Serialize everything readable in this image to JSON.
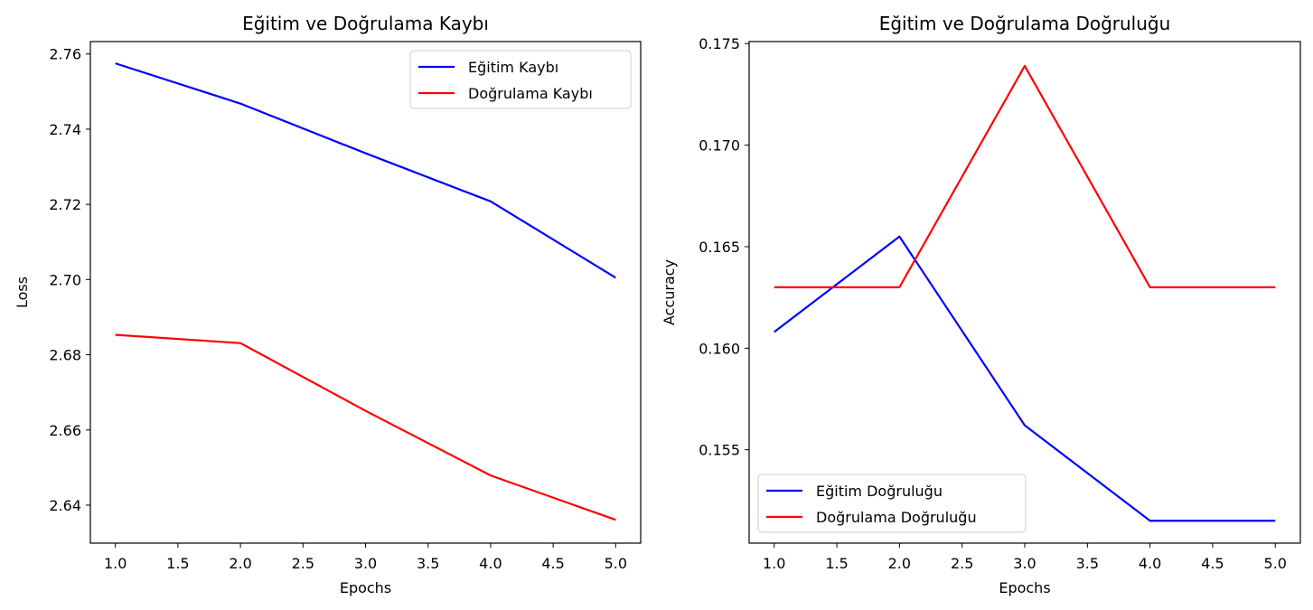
{
  "chart_data": [
    {
      "type": "line",
      "title": "Eğitim ve Doğrulama Kaybı",
      "xlabel": "Epochs",
      "ylabel": "Loss",
      "x": [
        1,
        2,
        3,
        4,
        5
      ],
      "xlim": [
        0.8,
        5.2
      ],
      "ylim": [
        2.6299,
        2.7633
      ],
      "xticks": [
        1.0,
        1.5,
        2.0,
        2.5,
        3.0,
        3.5,
        4.0,
        4.5,
        5.0
      ],
      "xtick_labels": [
        "1.0",
        "1.5",
        "2.0",
        "2.5",
        "3.0",
        "3.5",
        "4.0",
        "4.5",
        "5.0"
      ],
      "yticks": [
        2.64,
        2.66,
        2.68,
        2.7,
        2.72,
        2.74,
        2.76
      ],
      "ytick_labels": [
        "2.64",
        "2.66",
        "2.68",
        "2.70",
        "2.72",
        "2.74",
        "2.76"
      ],
      "grid": false,
      "legend_position": "top-right",
      "series": [
        {
          "name": "Eğitim Kaybı",
          "color": "#0000ff",
          "values": [
            2.7575,
            2.7468,
            2.7336,
            2.7208,
            2.7005
          ]
        },
        {
          "name": "Doğrulama Kaybı",
          "color": "#ff0000",
          "values": [
            2.6853,
            2.6831,
            2.6651,
            2.6479,
            2.6361
          ]
        }
      ]
    },
    {
      "type": "line",
      "title": "Eğitim ve Doğrulama Doğruluğu",
      "xlabel": "Epochs",
      "ylabel": "Accuracy",
      "x": [
        1,
        2,
        3,
        4,
        5
      ],
      "xlim": [
        0.8,
        5.2
      ],
      "ylim": [
        0.1504,
        0.1751
      ],
      "xticks": [
        1.0,
        1.5,
        2.0,
        2.5,
        3.0,
        3.5,
        4.0,
        4.5,
        5.0
      ],
      "xtick_labels": [
        "1.0",
        "1.5",
        "2.0",
        "2.5",
        "3.0",
        "3.5",
        "4.0",
        "4.5",
        "5.0"
      ],
      "yticks": [
        0.155,
        0.16,
        0.165,
        0.17,
        0.175
      ],
      "ytick_labels": [
        "0.155",
        "0.160",
        "0.165",
        "0.170",
        "0.175"
      ],
      "grid": false,
      "legend_position": "bottom-left",
      "series": [
        {
          "name": "Eğitim Doğruluğu",
          "color": "#0000ff",
          "values": [
            0.1608,
            0.1655,
            0.1562,
            0.1515,
            0.1515
          ]
        },
        {
          "name": "Doğrulama Doğruluğu",
          "color": "#ff0000",
          "values": [
            0.163,
            0.163,
            0.1739,
            0.163,
            0.163
          ]
        }
      ]
    }
  ]
}
